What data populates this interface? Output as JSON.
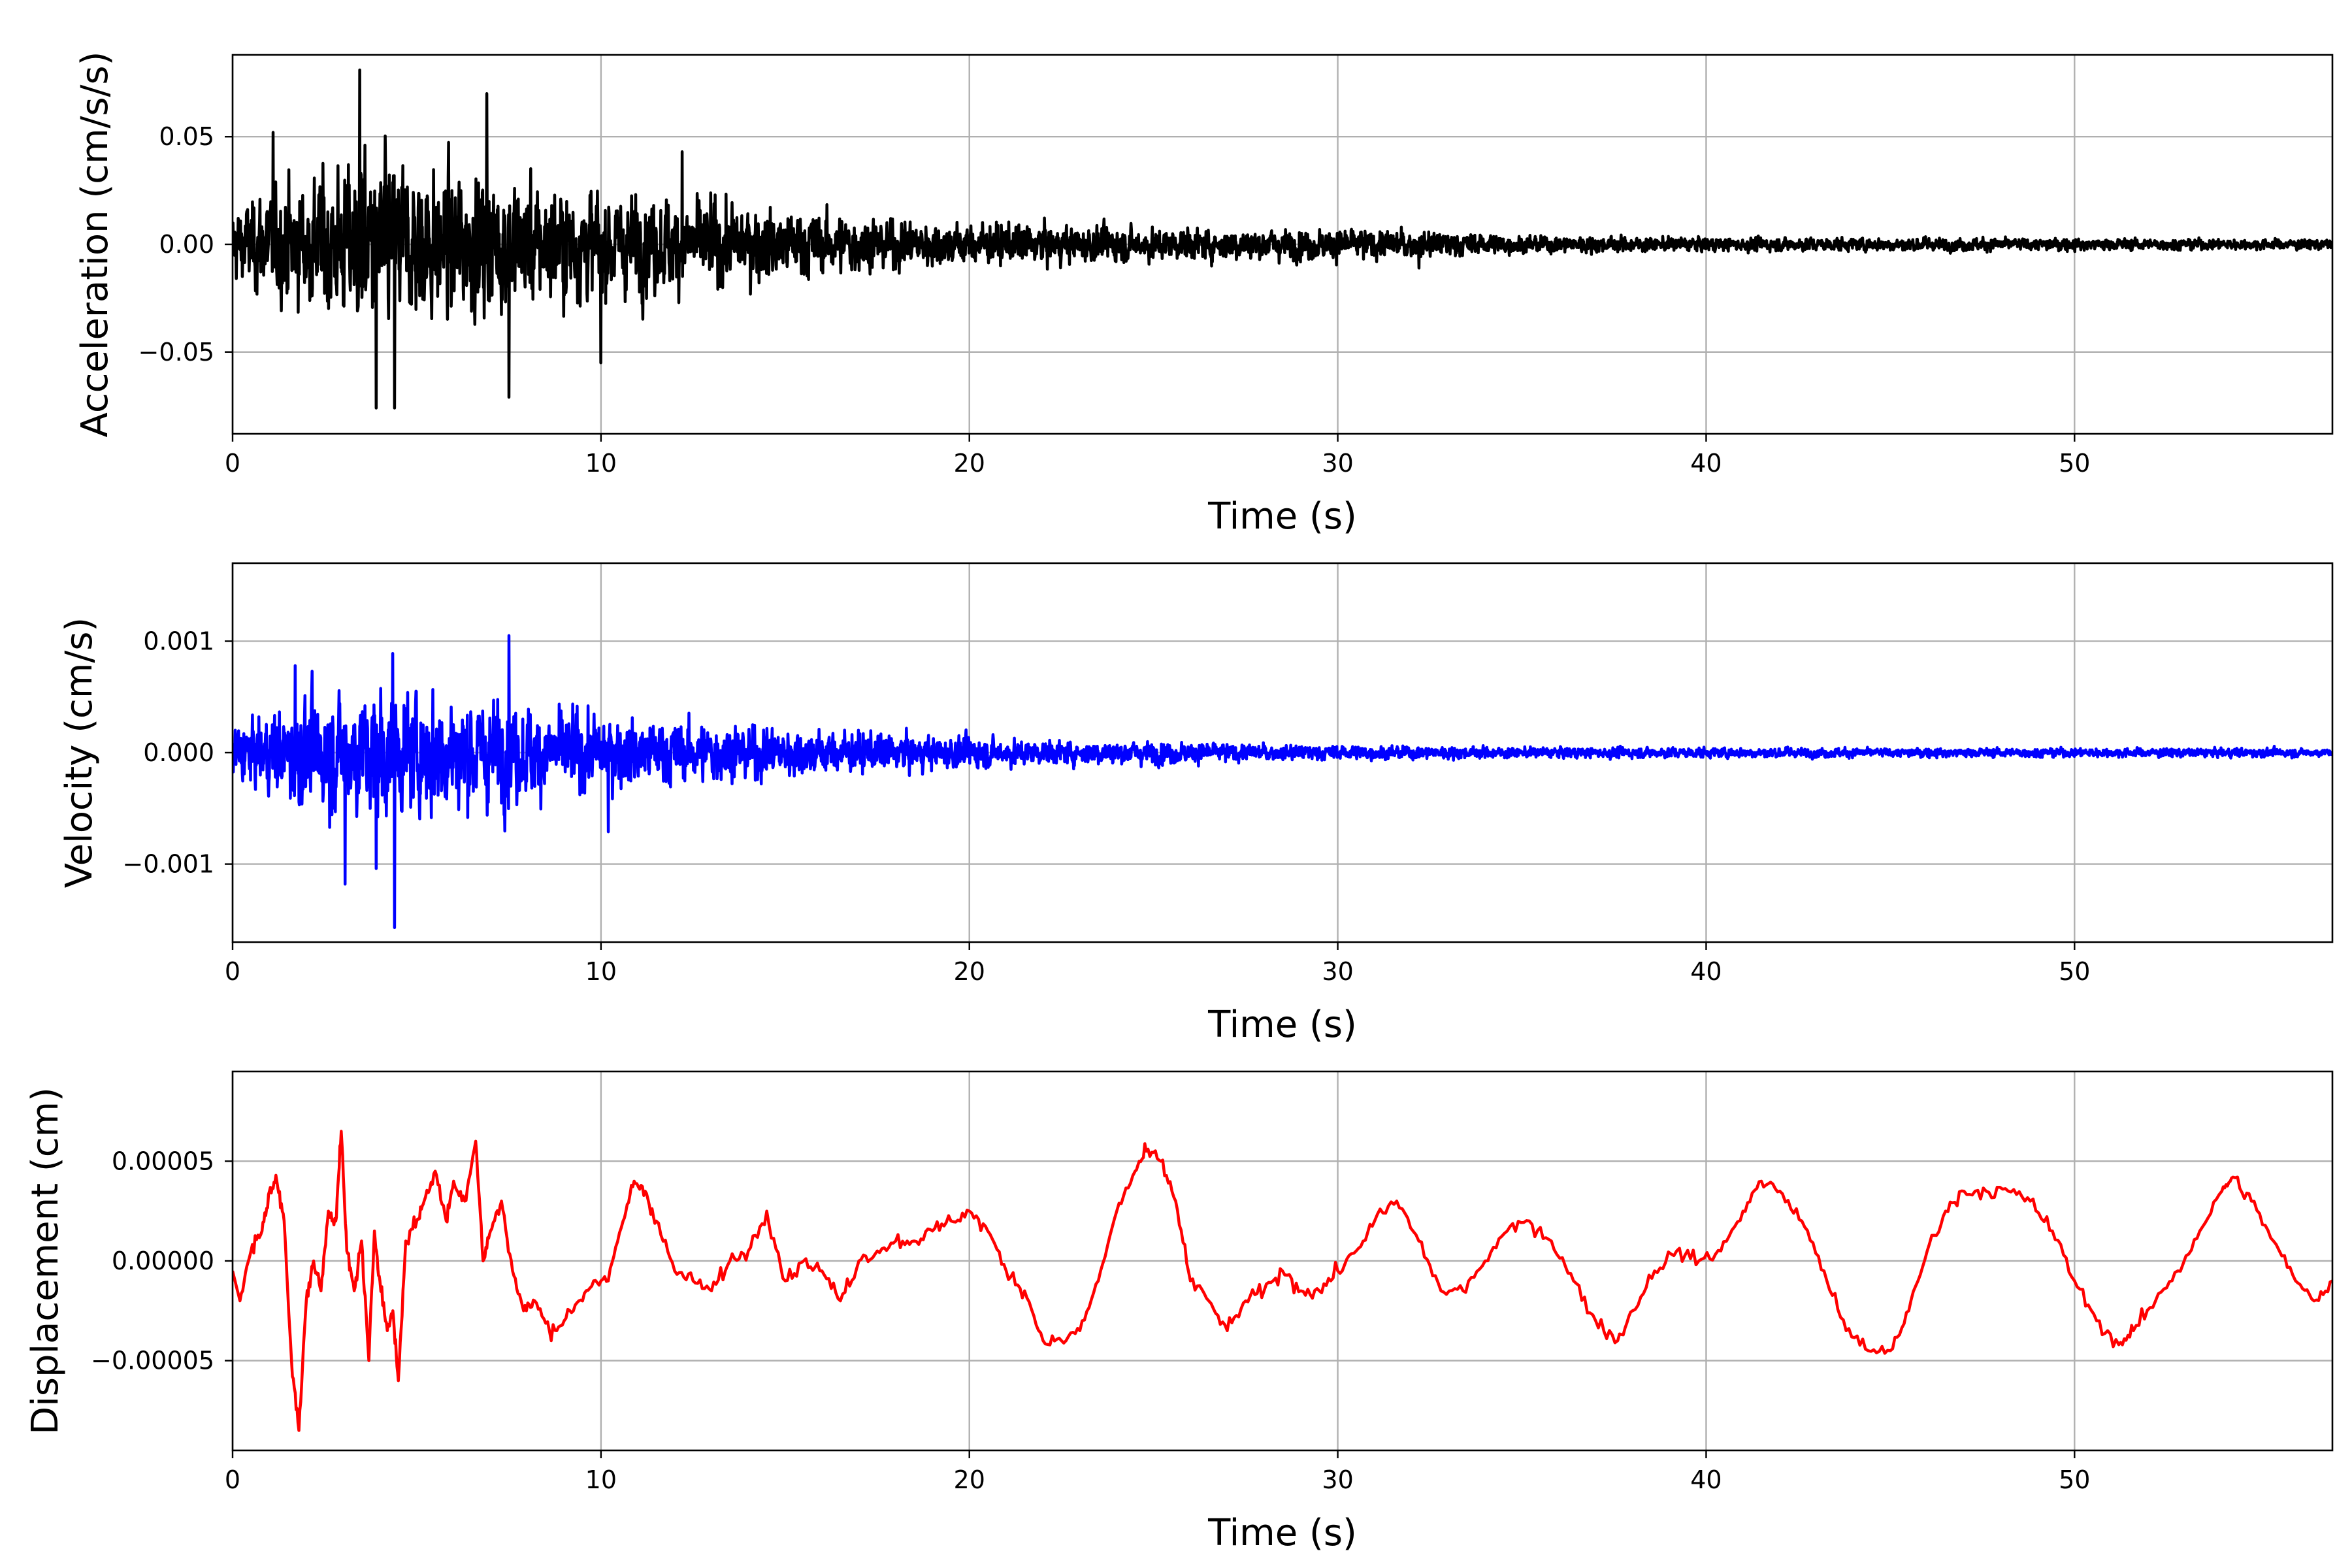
{
  "chart_data": [
    {
      "type": "line",
      "xlabel": "Time (s)",
      "ylabel": "Acceleration (cm/s/s)",
      "xlim": [
        0,
        57
      ],
      "ylim": [
        -0.088,
        0.088
      ],
      "xticks": [
        0,
        10,
        20,
        30,
        40,
        50
      ],
      "xtick_labels": [
        "0",
        "10",
        "20",
        "30",
        "40",
        "50"
      ],
      "yticks": [
        0.05,
        0.0,
        -0.05
      ],
      "ytick_labels": [
        "0.05",
        "0.00",
        "−0.05"
      ],
      "grid": true,
      "color": "#000000",
      "envelope": {
        "t": [
          0,
          1,
          2,
          3,
          4,
          5,
          6,
          7,
          8,
          9,
          10,
          12,
          14,
          16,
          18,
          20,
          22,
          25,
          30,
          32,
          35,
          40,
          45,
          50,
          55,
          57
        ],
        "amplitude": [
          0.02,
          0.03,
          0.035,
          0.045,
          0.05,
          0.045,
          0.04,
          0.042,
          0.035,
          0.033,
          0.03,
          0.026,
          0.022,
          0.018,
          0.014,
          0.012,
          0.011,
          0.009,
          0.009,
          0.008,
          0.005,
          0.004,
          0.004,
          0.0035,
          0.003,
          0.003
        ]
      },
      "peaks": [
        {
          "x": 3.45,
          "y": 0.081
        },
        {
          "x": 4.4,
          "y": 0.064
        },
        {
          "x": 6.9,
          "y": 0.07
        },
        {
          "x": 3.9,
          "y": -0.076
        },
        {
          "x": 4.4,
          "y": -0.076
        },
        {
          "x": 7.5,
          "y": -0.071
        },
        {
          "x": 1.1,
          "y": 0.052
        },
        {
          "x": 10.0,
          "y": -0.055
        },
        {
          "x": 12.2,
          "y": 0.043
        },
        {
          "x": 32.2,
          "y": -0.011
        }
      ]
    },
    {
      "type": "line",
      "xlabel": "Time (s)",
      "ylabel": "Velocity (cm/s)",
      "xlim": [
        0,
        57
      ],
      "ylim": [
        -0.0017,
        0.0017
      ],
      "xticks": [
        0,
        10,
        20,
        30,
        40,
        50
      ],
      "xtick_labels": [
        "0",
        "10",
        "20",
        "30",
        "40",
        "50"
      ],
      "yticks": [
        0.001,
        0.0,
        -0.001
      ],
      "ytick_labels": [
        "0.001",
        "0.000",
        "−0.001"
      ],
      "grid": true,
      "color": "#0000ff",
      "envelope": {
        "t": [
          0,
          1,
          2,
          3,
          4,
          5,
          6,
          7,
          8,
          9,
          10,
          12,
          14,
          16,
          18,
          20,
          22,
          25,
          28,
          30,
          35,
          40,
          45,
          50,
          55,
          57
        ],
        "amplitude": [
          0.0003,
          0.0004,
          0.0006,
          0.00065,
          0.00075,
          0.0006,
          0.00065,
          0.0006,
          0.0005,
          0.00045,
          0.0004,
          0.00035,
          0.0003,
          0.00025,
          0.0002,
          0.00017,
          0.00013,
          0.00013,
          9e-05,
          8e-05,
          6e-05,
          6e-05,
          5e-05,
          5e-05,
          5e-05,
          4e-05
        ]
      },
      "peaks": [
        {
          "x": 7.5,
          "y": 0.00105
        },
        {
          "x": 4.4,
          "y": -0.00157
        },
        {
          "x": 3.05,
          "y": -0.00118
        },
        {
          "x": 4.35,
          "y": 0.00089
        },
        {
          "x": 1.7,
          "y": 0.00078
        },
        {
          "x": 3.9,
          "y": -0.00104
        },
        {
          "x": 10.2,
          "y": -0.00071
        }
      ]
    },
    {
      "type": "line",
      "xlabel": "Time (s)",
      "ylabel": "Displacement (cm)",
      "xlim": [
        0,
        57
      ],
      "ylim": [
        -9.5e-05,
        9.5e-05
      ],
      "xticks": [
        0,
        10,
        20,
        30,
        40,
        50
      ],
      "xtick_labels": [
        "0",
        "10",
        "20",
        "30",
        "40",
        "50"
      ],
      "yticks": [
        5e-05,
        0.0,
        -5e-05
      ],
      "ytick_labels": [
        "0.00005",
        "0.00000",
        "−0.00005"
      ],
      "grid": true,
      "color": "#ff0000",
      "x": [
        0,
        0.2,
        0.5,
        0.8,
        1.0,
        1.2,
        1.4,
        1.6,
        1.8,
        2.0,
        2.2,
        2.4,
        2.6,
        2.8,
        2.95,
        3.1,
        3.3,
        3.5,
        3.7,
        3.85,
        4.0,
        4.2,
        4.35,
        4.5,
        4.7,
        5.0,
        5.2,
        5.5,
        5.8,
        6.0,
        6.3,
        6.6,
        6.8,
        7.0,
        7.3,
        7.6,
        7.9,
        8.2,
        8.6,
        9.0,
        9.4,
        9.8,
        10.2,
        10.6,
        10.9,
        11.2,
        11.5,
        12.0,
        12.5,
        13.0,
        13.5,
        14.0,
        14.5,
        15.0,
        15.5,
        16.0,
        16.5,
        17.0,
        17.5,
        18.0,
        18.5,
        19.0,
        19.5,
        20.0,
        20.5,
        21.0,
        21.5,
        22.0,
        22.5,
        23.0,
        23.5,
        24.0,
        24.5,
        24.8,
        25.2,
        25.6,
        26.0,
        26.5,
        27.0,
        27.5,
        28.0,
        28.5,
        29.0,
        29.5,
        30.0,
        30.5,
        31.0,
        31.6,
        32.2,
        32.8,
        33.4,
        34.0,
        34.6,
        35.2,
        35.8,
        36.4,
        37.0,
        37.6,
        38.0,
        38.6,
        39.2,
        39.8,
        40.4,
        41.0,
        41.5,
        42.0,
        42.6,
        43.2,
        43.8,
        44.4,
        45.0,
        45.5,
        46.0,
        46.5,
        47.0,
        47.6,
        48.2,
        48.8,
        49.4,
        50.0,
        50.6,
        51.2,
        51.6,
        52.2,
        52.8,
        53.4,
        54.0,
        54.3,
        54.8,
        55.4,
        56.0,
        56.5,
        57.0
      ],
      "y": [
        -5e-06,
        -2e-05,
        5e-06,
        1.5e-05,
        3.5e-05,
        4e-05,
        2e-05,
        -5e-05,
        -8.5e-05,
        -2e-05,
        0.0,
        -1.5e-05,
        2.5e-05,
        2e-05,
        6.5e-05,
        5e-06,
        -1.5e-05,
        1e-05,
        -5e-05,
        1.5e-05,
        -1e-05,
        -3.5e-05,
        -2.5e-05,
        -6e-05,
        1e-05,
        2e-05,
        3e-05,
        4.5e-05,
        2e-05,
        4e-05,
        3e-05,
        6e-05,
        0.0,
        1.5e-05,
        3e-05,
        -5e-06,
        -2.5e-05,
        -2e-05,
        -3.5e-05,
        -3e-05,
        -2e-05,
        -1e-05,
        -1e-05,
        2e-05,
        4e-05,
        3.5e-05,
        2e-05,
        -5e-06,
        -1e-05,
        -1.5e-05,
        0.0,
        5e-06,
        2.5e-05,
        -1e-05,
        0.0,
        -5e-06,
        -2e-05,
        0.0,
        5e-06,
        1e-05,
        1e-05,
        1.5e-05,
        2e-05,
        2.5e-05,
        1.5e-05,
        -5e-06,
        -1.5e-05,
        -4e-05,
        -4e-05,
        -3.5e-05,
        -1e-05,
        2.5e-05,
        4.5e-05,
        5.5e-05,
        5e-05,
        3e-05,
        -1e-05,
        -2e-05,
        -3.5e-05,
        -2e-05,
        -1.5e-05,
        -5e-06,
        -1.5e-05,
        -1.5e-05,
        -5e-06,
        5e-06,
        2e-05,
        3e-05,
        1e-05,
        -1.5e-05,
        -1.5e-05,
        0.0,
        1.5e-05,
        2e-05,
        1e-05,
        -1e-05,
        -3e-05,
        -4e-05,
        -2.5e-05,
        -5e-06,
        5e-06,
        0.0,
        5e-06,
        2.5e-05,
        4e-05,
        3.5e-05,
        2e-05,
        -5e-06,
        -3.5e-05,
        -4.5e-05,
        -4.5e-05,
        -2.5e-05,
        5e-06,
        2.5e-05,
        3.5e-05,
        3.5e-05,
        3.5e-05,
        3e-05,
        1.5e-05,
        -1e-05,
        -3e-05,
        -4.2e-05,
        -3.5e-05,
        -2e-05,
        -5e-06,
        1.5e-05,
        3.5e-05,
        4.2e-05,
        3e-05,
        1e-05,
        -1e-05,
        -2e-05,
        -1e-05
      ]
    }
  ]
}
